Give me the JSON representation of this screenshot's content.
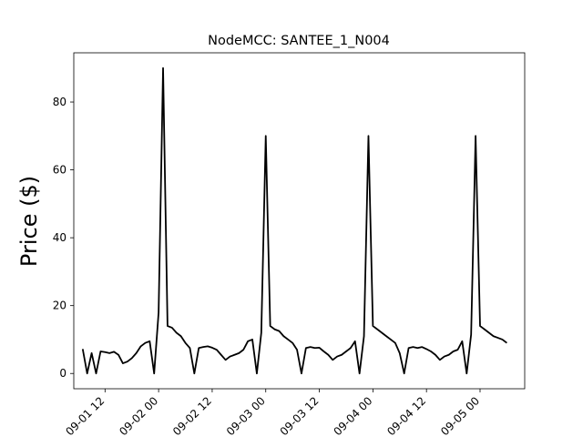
{
  "chart_data": {
    "type": "line",
    "title": "NodeMCC: SANTEE_1_N004",
    "xlabel": "",
    "ylabel": "Price ($)",
    "ylim": [
      -4.5,
      94.5
    ],
    "yticks": [
      0,
      20,
      40,
      60,
      80
    ],
    "xticks": [
      {
        "label": "09-01 12",
        "value": "2019-09-01 12:00"
      },
      {
        "label": "09-02 00",
        "value": "2019-09-02 00:00"
      },
      {
        "label": "09-02 12",
        "value": "2019-09-02 12:00"
      },
      {
        "label": "09-03 00",
        "value": "2019-09-03 00:00"
      },
      {
        "label": "09-03 12",
        "value": "2019-09-03 12:00"
      },
      {
        "label": "09-04 00",
        "value": "2019-09-04 00:00"
      },
      {
        "label": "09-04 12",
        "value": "2019-09-04 12:00"
      },
      {
        "label": "09-05 00",
        "value": "2019-09-05 00:00"
      }
    ],
    "grid": false,
    "legend": "none",
    "series": [
      {
        "color": "#000000",
        "points": [
          [
            "2019-09-01 07:00",
            7.2
          ],
          [
            "2019-09-01 08:00",
            0.0
          ],
          [
            "2019-09-01 09:00",
            6.0
          ],
          [
            "2019-09-01 10:00",
            0.0
          ],
          [
            "2019-09-01 11:00",
            6.5
          ],
          [
            "2019-09-01 12:00",
            6.3
          ],
          [
            "2019-09-01 13:00",
            6.0
          ],
          [
            "2019-09-01 14:00",
            6.4
          ],
          [
            "2019-09-01 15:00",
            5.5
          ],
          [
            "2019-09-01 16:00",
            3.0
          ],
          [
            "2019-09-01 17:00",
            3.5
          ],
          [
            "2019-09-01 18:00",
            4.5
          ],
          [
            "2019-09-01 19:00",
            6.0
          ],
          [
            "2019-09-01 20:00",
            8.0
          ],
          [
            "2019-09-01 21:00",
            9.0
          ],
          [
            "2019-09-01 22:00",
            9.5
          ],
          [
            "2019-09-01 23:00",
            0.0
          ],
          [
            "2019-09-02 00:00",
            18.0
          ],
          [
            "2019-09-02 01:00",
            90.0
          ],
          [
            "2019-09-02 02:00",
            14.0
          ],
          [
            "2019-09-02 03:00",
            13.5
          ],
          [
            "2019-09-02 04:00",
            12.0
          ],
          [
            "2019-09-02 05:00",
            11.0
          ],
          [
            "2019-09-02 06:00",
            9.0
          ],
          [
            "2019-09-02 07:00",
            7.5
          ],
          [
            "2019-09-02 08:00",
            0.0
          ],
          [
            "2019-09-02 09:00",
            7.5
          ],
          [
            "2019-09-02 10:00",
            7.8
          ],
          [
            "2019-09-02 11:00",
            8.0
          ],
          [
            "2019-09-02 12:00",
            7.6
          ],
          [
            "2019-09-02 13:00",
            7.0
          ],
          [
            "2019-09-02 14:00",
            5.5
          ],
          [
            "2019-09-02 15:00",
            4.0
          ],
          [
            "2019-09-02 16:00",
            5.0
          ],
          [
            "2019-09-02 17:00",
            5.5
          ],
          [
            "2019-09-02 18:00",
            6.0
          ],
          [
            "2019-09-02 19:00",
            7.0
          ],
          [
            "2019-09-02 20:00",
            9.5
          ],
          [
            "2019-09-02 21:00",
            10.0
          ],
          [
            "2019-09-02 22:00",
            0.0
          ],
          [
            "2019-09-02 23:00",
            12.0
          ],
          [
            "2019-09-03 00:00",
            70.0
          ],
          [
            "2019-09-03 01:00",
            14.0
          ],
          [
            "2019-09-03 02:00",
            13.0
          ],
          [
            "2019-09-03 03:00",
            12.5
          ],
          [
            "2019-09-03 04:00",
            11.0
          ],
          [
            "2019-09-03 05:00",
            10.0
          ],
          [
            "2019-09-03 06:00",
            9.0
          ],
          [
            "2019-09-03 07:00",
            7.0
          ],
          [
            "2019-09-03 08:00",
            0.0
          ],
          [
            "2019-09-03 09:00",
            7.5
          ],
          [
            "2019-09-03 10:00",
            7.8
          ],
          [
            "2019-09-03 11:00",
            7.5
          ],
          [
            "2019-09-03 12:00",
            7.6
          ],
          [
            "2019-09-03 13:00",
            6.5
          ],
          [
            "2019-09-03 14:00",
            5.5
          ],
          [
            "2019-09-03 15:00",
            4.0
          ],
          [
            "2019-09-03 16:00",
            5.0
          ],
          [
            "2019-09-03 17:00",
            5.5
          ],
          [
            "2019-09-03 18:00",
            6.5
          ],
          [
            "2019-09-03 19:00",
            7.5
          ],
          [
            "2019-09-03 20:00",
            9.5
          ],
          [
            "2019-09-03 21:00",
            0.0
          ],
          [
            "2019-09-03 22:00",
            11.0
          ],
          [
            "2019-09-03 23:00",
            70.0
          ],
          [
            "2019-09-04 00:00",
            14.0
          ],
          [
            "2019-09-04 01:00",
            13.0
          ],
          [
            "2019-09-04 02:00",
            12.0
          ],
          [
            "2019-09-04 03:00",
            11.0
          ],
          [
            "2019-09-04 04:00",
            10.0
          ],
          [
            "2019-09-04 05:00",
            9.0
          ],
          [
            "2019-09-04 06:00",
            6.0
          ],
          [
            "2019-09-04 07:00",
            0.0
          ],
          [
            "2019-09-04 08:00",
            7.5
          ],
          [
            "2019-09-04 09:00",
            7.8
          ],
          [
            "2019-09-04 10:00",
            7.5
          ],
          [
            "2019-09-04 11:00",
            7.8
          ],
          [
            "2019-09-04 12:00",
            7.2
          ],
          [
            "2019-09-04 13:00",
            6.5
          ],
          [
            "2019-09-04 14:00",
            5.5
          ],
          [
            "2019-09-04 15:00",
            4.0
          ],
          [
            "2019-09-04 16:00",
            5.0
          ],
          [
            "2019-09-04 17:00",
            5.5
          ],
          [
            "2019-09-04 18:00",
            6.5
          ],
          [
            "2019-09-04 19:00",
            7.0
          ],
          [
            "2019-09-04 20:00",
            9.5
          ],
          [
            "2019-09-04 21:00",
            0.0
          ],
          [
            "2019-09-04 22:00",
            11.5
          ],
          [
            "2019-09-04 23:00",
            70.0
          ],
          [
            "2019-09-05 00:00",
            14.0
          ],
          [
            "2019-09-05 01:00",
            13.0
          ],
          [
            "2019-09-05 02:00",
            12.0
          ],
          [
            "2019-09-05 03:00",
            11.0
          ],
          [
            "2019-09-05 04:00",
            10.5
          ],
          [
            "2019-09-05 05:00",
            10.0
          ],
          [
            "2019-09-05 06:00",
            9.0
          ]
        ]
      }
    ]
  }
}
